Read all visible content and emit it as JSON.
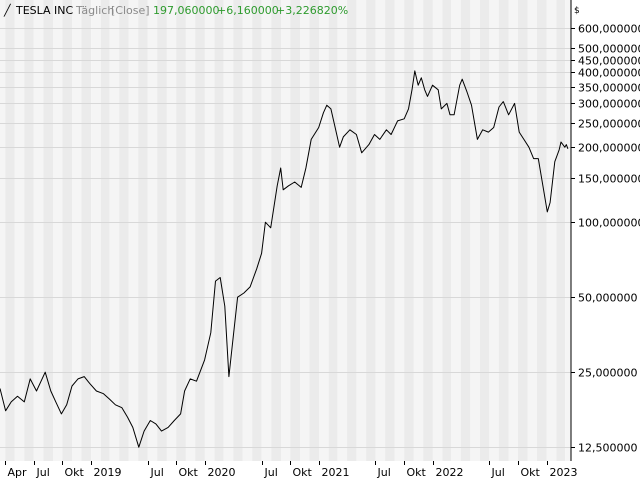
{
  "header": {
    "symbol": "TESLA INC",
    "interval": "Täglich",
    "mode": "[Close]",
    "last": "197,060000",
    "change": "+6,160000",
    "change_pct": "+3,226820%",
    "currency": "$"
  },
  "colors": {
    "background": "#ffffff",
    "plot_band_light": "#f5f5f5",
    "plot_band_dark": "#ebebeb",
    "gridline": "#d8d8d8",
    "price_line": "#000000",
    "positive": "#2e9b2e",
    "label": "#000000",
    "muted": "#8a8a8a"
  },
  "chart_data": {
    "type": "line",
    "y_scale": "log",
    "ylim": [
      11.0,
      780.0
    ],
    "xlim": [
      "2018-03-15",
      "2023-03-20"
    ],
    "y_ticks": [
      {
        "value": 600,
        "label": "600,000000"
      },
      {
        "value": 500,
        "label": "500,000000"
      },
      {
        "value": 450,
        "label": "450,000000"
      },
      {
        "value": 400,
        "label": "400,000000"
      },
      {
        "value": 350,
        "label": "350,000000"
      },
      {
        "value": 300,
        "label": "300,000000"
      },
      {
        "value": 250,
        "label": "250,000000"
      },
      {
        "value": 200,
        "label": "200,000000"
      },
      {
        "value": 150,
        "label": "150,000000"
      },
      {
        "value": 100,
        "label": "100,000000"
      },
      {
        "value": 50,
        "label": "50,000000"
      },
      {
        "value": 25,
        "label": "25,000000"
      },
      {
        "value": 12.5,
        "label": "12,500000"
      }
    ],
    "x_ticks": [
      {
        "date": "2018-04-01",
        "label": "Apr"
      },
      {
        "date": "2018-07-01",
        "label": "Jul"
      },
      {
        "date": "2018-10-01",
        "label": "Okt"
      },
      {
        "date": "2019-01-01",
        "label": "2019"
      },
      {
        "date": "2019-07-01",
        "label": "Jul"
      },
      {
        "date": "2019-10-01",
        "label": "Okt"
      },
      {
        "date": "2020-01-01",
        "label": "2020"
      },
      {
        "date": "2020-07-01",
        "label": "Jul"
      },
      {
        "date": "2020-10-01",
        "label": "Okt"
      },
      {
        "date": "2021-01-01",
        "label": "2021"
      },
      {
        "date": "2021-07-01",
        "label": "Jul"
      },
      {
        "date": "2021-10-01",
        "label": "Okt"
      },
      {
        "date": "2022-01-01",
        "label": "2022"
      },
      {
        "date": "2022-07-01",
        "label": "Jul"
      },
      {
        "date": "2022-10-01",
        "label": "Okt"
      },
      {
        "date": "2023-01-01",
        "label": "2023"
      }
    ],
    "series": [
      {
        "color": "#000000",
        "points": [
          [
            "2018-03-15",
            21.5
          ],
          [
            "2018-04-02",
            17.5
          ],
          [
            "2018-04-20",
            19.0
          ],
          [
            "2018-05-10",
            20.0
          ],
          [
            "2018-06-01",
            19.0
          ],
          [
            "2018-06-20",
            23.5
          ],
          [
            "2018-07-10",
            21.0
          ],
          [
            "2018-08-07",
            25.0
          ],
          [
            "2018-08-25",
            21.0
          ],
          [
            "2018-09-10",
            19.0
          ],
          [
            "2018-09-28",
            17.0
          ],
          [
            "2018-10-15",
            18.5
          ],
          [
            "2018-11-01",
            22.0
          ],
          [
            "2018-11-20",
            23.5
          ],
          [
            "2018-12-10",
            24.0
          ],
          [
            "2018-12-28",
            22.5
          ],
          [
            "2019-01-18",
            21.0
          ],
          [
            "2019-02-10",
            20.5
          ],
          [
            "2019-03-01",
            19.5
          ],
          [
            "2019-03-20",
            18.5
          ],
          [
            "2019-04-10",
            18.0
          ],
          [
            "2019-04-28",
            16.5
          ],
          [
            "2019-05-15",
            15.0
          ],
          [
            "2019-06-03",
            12.5
          ],
          [
            "2019-06-20",
            14.5
          ],
          [
            "2019-07-10",
            16.0
          ],
          [
            "2019-07-28",
            15.5
          ],
          [
            "2019-08-15",
            14.5
          ],
          [
            "2019-09-05",
            15.0
          ],
          [
            "2019-09-25",
            16.0
          ],
          [
            "2019-10-15",
            17.0
          ],
          [
            "2019-10-28",
            21.0
          ],
          [
            "2019-11-15",
            23.5
          ],
          [
            "2019-12-05",
            23.0
          ],
          [
            "2019-12-31",
            28.0
          ],
          [
            "2020-01-20",
            36.0
          ],
          [
            "2020-02-04",
            58.0
          ],
          [
            "2020-02-19",
            60.0
          ],
          [
            "2020-03-05",
            46.0
          ],
          [
            "2020-03-18",
            24.0
          ],
          [
            "2020-03-31",
            34.0
          ],
          [
            "2020-04-15",
            50.0
          ],
          [
            "2020-05-05",
            52.0
          ],
          [
            "2020-05-25",
            55.0
          ],
          [
            "2020-06-15",
            65.0
          ],
          [
            "2020-07-01",
            75.0
          ],
          [
            "2020-07-13",
            100.0
          ],
          [
            "2020-07-30",
            95.0
          ],
          [
            "2020-08-20",
            140.0
          ],
          [
            "2020-08-31",
            165.0
          ],
          [
            "2020-09-08",
            135.0
          ],
          [
            "2020-09-25",
            140.0
          ],
          [
            "2020-10-15",
            145.0
          ],
          [
            "2020-11-05",
            138.0
          ],
          [
            "2020-11-20",
            165.0
          ],
          [
            "2020-12-07",
            215.0
          ],
          [
            "2020-12-31",
            240.0
          ],
          [
            "2021-01-15",
            275.0
          ],
          [
            "2021-01-26",
            295.0
          ],
          [
            "2021-02-08",
            285.0
          ],
          [
            "2021-02-25",
            230.0
          ],
          [
            "2021-03-08",
            200.0
          ],
          [
            "2021-03-20",
            220.0
          ],
          [
            "2021-04-10",
            235.0
          ],
          [
            "2021-05-01",
            225.0
          ],
          [
            "2021-05-18",
            190.0
          ],
          [
            "2021-06-10",
            205.0
          ],
          [
            "2021-06-28",
            225.0
          ],
          [
            "2021-07-15",
            215.0
          ],
          [
            "2021-08-05",
            235.0
          ],
          [
            "2021-08-20",
            225.0
          ],
          [
            "2021-09-10",
            255.0
          ],
          [
            "2021-10-01",
            260.0
          ],
          [
            "2021-10-15",
            285.0
          ],
          [
            "2021-10-26",
            340.0
          ],
          [
            "2021-11-04",
            405.0
          ],
          [
            "2021-11-15",
            355.0
          ],
          [
            "2021-11-25",
            380.0
          ],
          [
            "2021-12-06",
            340.0
          ],
          [
            "2021-12-15",
            320.0
          ],
          [
            "2021-12-31",
            355.0
          ],
          [
            "2022-01-18",
            340.0
          ],
          [
            "2022-01-28",
            285.0
          ],
          [
            "2022-02-15",
            300.0
          ],
          [
            "2022-02-25",
            270.0
          ],
          [
            "2022-03-10",
            270.0
          ],
          [
            "2022-03-28",
            355.0
          ],
          [
            "2022-04-05",
            375.0
          ],
          [
            "2022-04-20",
            335.0
          ],
          [
            "2022-05-05",
            295.0
          ],
          [
            "2022-05-24",
            215.0
          ],
          [
            "2022-06-10",
            235.0
          ],
          [
            "2022-06-28",
            230.0
          ],
          [
            "2022-07-15",
            240.0
          ],
          [
            "2022-08-01",
            290.0
          ],
          [
            "2022-08-15",
            305.0
          ],
          [
            "2022-09-01",
            270.0
          ],
          [
            "2022-09-20",
            300.0
          ],
          [
            "2022-10-05",
            230.0
          ],
          [
            "2022-10-20",
            215.0
          ],
          [
            "2022-11-05",
            200.0
          ],
          [
            "2022-11-20",
            180.0
          ],
          [
            "2022-12-05",
            180.0
          ],
          [
            "2022-12-20",
            140.0
          ],
          [
            "2023-01-03",
            110.0
          ],
          [
            "2023-01-12",
            120.0
          ],
          [
            "2023-01-27",
            175.0
          ],
          [
            "2023-02-10",
            195.0
          ],
          [
            "2023-02-16",
            210.0
          ],
          [
            "2023-02-28",
            200.0
          ],
          [
            "2023-03-05",
            205.0
          ],
          [
            "2023-03-10",
            197.06
          ]
        ]
      }
    ]
  }
}
